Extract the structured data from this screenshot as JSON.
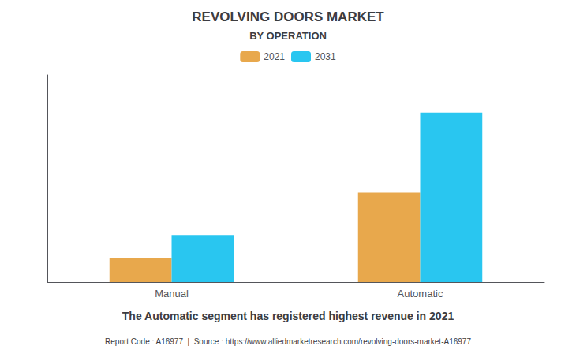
{
  "chart_data": {
    "type": "bar",
    "title": "REVOLVING DOORS MARKET",
    "subtitle": "BY OPERATION",
    "categories": [
      "Manual",
      "Automatic"
    ],
    "series": [
      {
        "name": "2021",
        "color": "#E8A84C",
        "values": [
          1.0,
          3.8
        ]
      },
      {
        "name": "2031",
        "color": "#29C6F0",
        "values": [
          2.0,
          7.2
        ]
      }
    ],
    "ylim": [
      0,
      8.8
    ],
    "grid": false,
    "legend": "top",
    "tick_labels": "x",
    "annotations": [
      "The Automatic segment has registered highest revenue in 2021"
    ],
    "footer": "Report Code : A16977  |  Source : https://www.alliedmarketresearch.com/revolving-doors-market-A16977"
  }
}
